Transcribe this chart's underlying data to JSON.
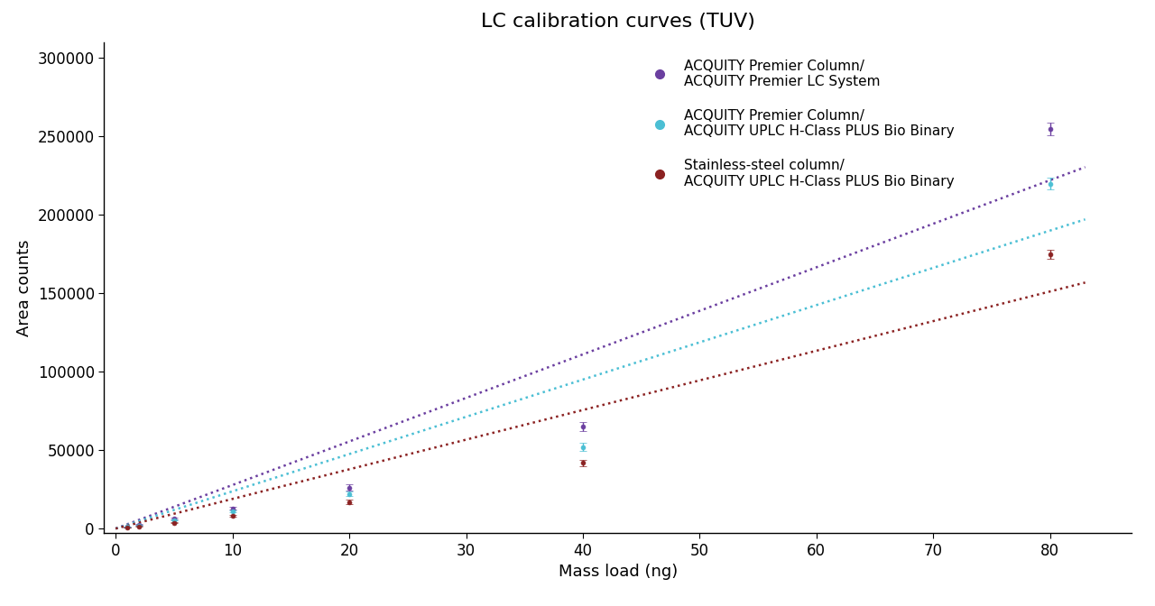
{
  "title": "LC calibration curves (TUV)",
  "xlabel": "Mass load (ng)",
  "ylabel": "Area counts",
  "xlim": [
    -1,
    87
  ],
  "ylim": [
    -3000,
    310000
  ],
  "yticks": [
    0,
    50000,
    100000,
    150000,
    200000,
    250000,
    300000
  ],
  "xticks": [
    0,
    10,
    20,
    30,
    40,
    50,
    60,
    70,
    80
  ],
  "data_x": [
    1,
    2,
    5,
    10,
    20,
    40,
    80
  ],
  "purple_y": [
    1200,
    2500,
    6500,
    13000,
    26000,
    65000,
    255000
  ],
  "purple_yerr": [
    300,
    400,
    600,
    1000,
    2000,
    3000,
    4000
  ],
  "cyan_y": [
    1000,
    2000,
    5500,
    11000,
    22000,
    52000,
    220000
  ],
  "cyan_yerr": [
    250,
    350,
    500,
    800,
    1500,
    2500,
    3500
  ],
  "red_y": [
    600,
    1400,
    3800,
    8000,
    17000,
    42000,
    175000
  ],
  "red_yerr": [
    150,
    250,
    400,
    600,
    1200,
    2000,
    3000
  ],
  "legend_labels": [
    "ACQUITY Premier Column/\nACQUITY Premier LC System",
    "ACQUITY Premier Column/\nACQUITY UPLC H-Class PLUS Bio Binary",
    "Stainless-steel column/\nACQUITY UPLC H-Class PLUS Bio Binary"
  ],
  "legend_colors": [
    "#6B3FA0",
    "#4BBFD4",
    "#8B2222"
  ],
  "background_color": "#FFFFFF",
  "title_fontsize": 16,
  "label_fontsize": 13,
  "tick_fontsize": 12,
  "legend_fontsize": 11
}
